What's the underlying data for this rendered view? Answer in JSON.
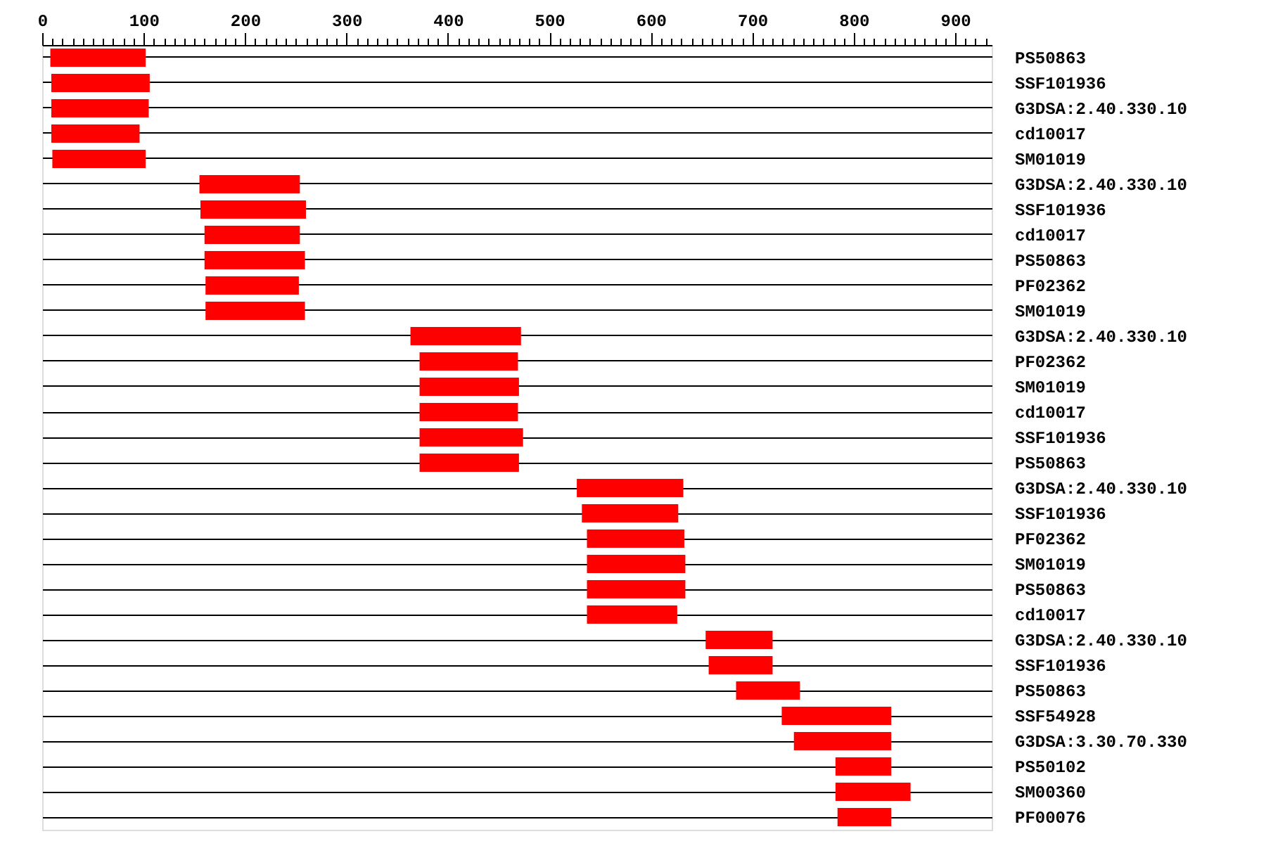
{
  "chart_data": {
    "type": "bar",
    "orientation": "horizontal",
    "categories": [
      "PS50863",
      "SSF101936",
      "G3DSA:2.40.330.10",
      "cd10017",
      "SM01019",
      "G3DSA:2.40.330.10",
      "SSF101936",
      "cd10017",
      "PS50863",
      "PF02362",
      "SM01019",
      "G3DSA:2.40.330.10",
      "PF02362",
      "SM01019",
      "cd10017",
      "SSF101936",
      "PS50863",
      "G3DSA:2.40.330.10",
      "SSF101936",
      "PF02362",
      "SM01019",
      "PS50863",
      "cd10017",
      "G3DSA:2.40.330.10",
      "SSF101936",
      "PS50863",
      "SSF54928",
      "G3DSA:3.30.70.330",
      "PS50102",
      "SM00360",
      "PF00076"
    ],
    "base": [
      8,
      9,
      9,
      9,
      10,
      155,
      156,
      160,
      160,
      161,
      161,
      363,
      372,
      372,
      372,
      372,
      372,
      527,
      532,
      537,
      537,
      537,
      537,
      654,
      657,
      684,
      729,
      741,
      782,
      782,
      784
    ],
    "values": [
      94,
      97,
      96,
      87,
      92,
      99,
      104,
      94,
      99,
      92,
      98,
      109,
      97,
      98,
      97,
      102,
      98,
      105,
      95,
      96,
      97,
      97,
      89,
      66,
      63,
      63,
      108,
      96,
      55,
      74,
      53
    ],
    "color": "#ff0000",
    "xlim": [
      0,
      936
    ],
    "xticks": [
      0,
      {
        "value": 10,
        "label": null
      },
      {
        "value": 20,
        "label": null
      },
      {
        "value": 30,
        "label": null
      },
      {
        "value": 40,
        "label": null
      },
      {
        "value": 50,
        "label": null
      },
      {
        "value": 60,
        "label": null
      },
      {
        "value": 70,
        "label": null
      },
      {
        "value": 80,
        "label": null
      },
      {
        "value": 90,
        "label": null
      },
      100,
      {
        "value": 110,
        "label": null
      },
      {
        "value": 120,
        "label": null
      },
      {
        "value": 130,
        "label": null
      },
      {
        "value": 140,
        "label": null
      },
      {
        "value": 150,
        "label": null
      },
      {
        "value": 160,
        "label": null
      },
      {
        "value": 170,
        "label": null
      },
      {
        "value": 180,
        "label": null
      },
      {
        "value": 190,
        "label": null
      },
      200,
      {
        "value": 210,
        "label": null
      },
      {
        "value": 220,
        "label": null
      },
      {
        "value": 230,
        "label": null
      },
      {
        "value": 240,
        "label": null
      },
      {
        "value": 250,
        "label": null
      },
      {
        "value": 260,
        "label": null
      },
      {
        "value": 270,
        "label": null
      },
      {
        "value": 280,
        "label": null
      },
      {
        "value": 290,
        "label": null
      },
      300,
      {
        "value": 310,
        "label": null
      },
      {
        "value": 320,
        "label": null
      },
      {
        "value": 330,
        "label": null
      },
      {
        "value": 340,
        "label": null
      },
      {
        "value": 350,
        "label": null
      },
      {
        "value": 360,
        "label": null
      },
      {
        "value": 370,
        "label": null
      },
      {
        "value": 380,
        "label": null
      },
      {
        "value": 390,
        "label": null
      },
      400,
      {
        "value": 410,
        "label": null
      },
      {
        "value": 420,
        "label": null
      },
      {
        "value": 430,
        "label": null
      },
      {
        "value": 440,
        "label": null
      },
      {
        "value": 450,
        "label": null
      },
      {
        "value": 460,
        "label": null
      },
      {
        "value": 470,
        "label": null
      },
      {
        "value": 480,
        "label": null
      },
      {
        "value": 490,
        "label": null
      },
      500,
      {
        "value": 510,
        "label": null
      },
      {
        "value": 520,
        "label": null
      },
      {
        "value": 530,
        "label": null
      },
      {
        "value": 540,
        "label": null
      },
      {
        "value": 550,
        "label": null
      },
      {
        "value": 560,
        "label": null
      },
      {
        "value": 570,
        "label": null
      },
      {
        "value": 580,
        "label": null
      },
      {
        "value": 590,
        "label": null
      },
      600,
      {
        "value": 610,
        "label": null
      },
      {
        "value": 620,
        "label": null
      },
      {
        "value": 630,
        "label": null
      },
      {
        "value": 640,
        "label": null
      },
      {
        "value": 650,
        "label": null
      },
      {
        "value": 660,
        "label": null
      },
      {
        "value": 670,
        "label": null
      },
      {
        "value": 680,
        "label": null
      },
      {
        "value": 690,
        "label": null
      },
      700,
      {
        "value": 710,
        "label": null
      },
      {
        "value": 720,
        "label": null
      },
      {
        "value": 730,
        "label": null
      },
      {
        "value": 740,
        "label": null
      },
      {
        "value": 750,
        "label": null
      },
      {
        "value": 760,
        "label": null
      },
      {
        "value": 770,
        "label": null
      },
      {
        "value": 780,
        "label": null
      },
      {
        "value": 790,
        "label": null
      },
      800,
      {
        "value": 810,
        "label": null
      },
      {
        "value": 820,
        "label": null
      },
      {
        "value": 830,
        "label": null
      },
      {
        "value": 840,
        "label": null
      },
      {
        "value": 850,
        "label": null
      },
      {
        "value": 860,
        "label": null
      },
      {
        "value": 870,
        "label": null
      },
      {
        "value": 880,
        "label": null
      },
      {
        "value": 890,
        "label": null
      },
      900,
      {
        "value": 910,
        "label": null
      },
      {
        "value": 920,
        "label": null
      },
      {
        "value": 930,
        "label": null
      }
    ],
    "grid": "y"
  }
}
